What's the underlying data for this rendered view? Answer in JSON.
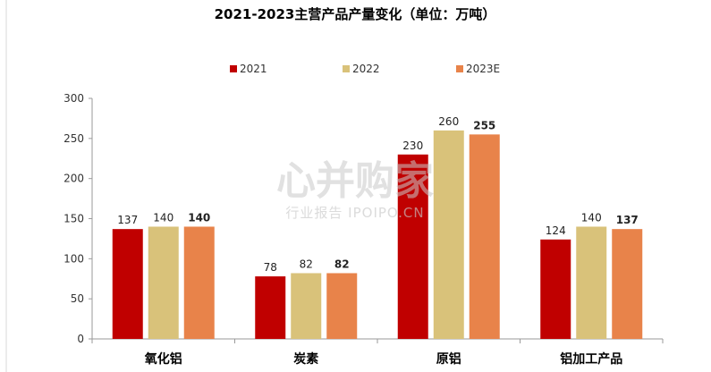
{
  "chart_data": {
    "type": "bar",
    "title": "2021-2023主营产品产量变化（单位：万吨）",
    "categories": [
      "氧化铝",
      "炭素",
      "原铝",
      "铝加工产品"
    ],
    "series": [
      {
        "name": "2021",
        "values": [
          137,
          78,
          230,
          124
        ],
        "color": "#c00000"
      },
      {
        "name": "2022",
        "values": [
          140,
          82,
          260,
          140
        ],
        "color": "#d9c27a"
      },
      {
        "name": "2023E",
        "values": [
          140,
          82,
          255,
          137
        ],
        "color": "#e8834a"
      }
    ],
    "bold_labels_series": "2023E",
    "ylim": [
      0,
      300
    ],
    "yticks": [
      0,
      50,
      100,
      150,
      200,
      250,
      300
    ],
    "xlabel": "",
    "ylabel": "",
    "grid": false,
    "legend": "top-center"
  },
  "watermark": {
    "main": "心并购家",
    "sub": "行业报告  IPOIPO.CN"
  }
}
